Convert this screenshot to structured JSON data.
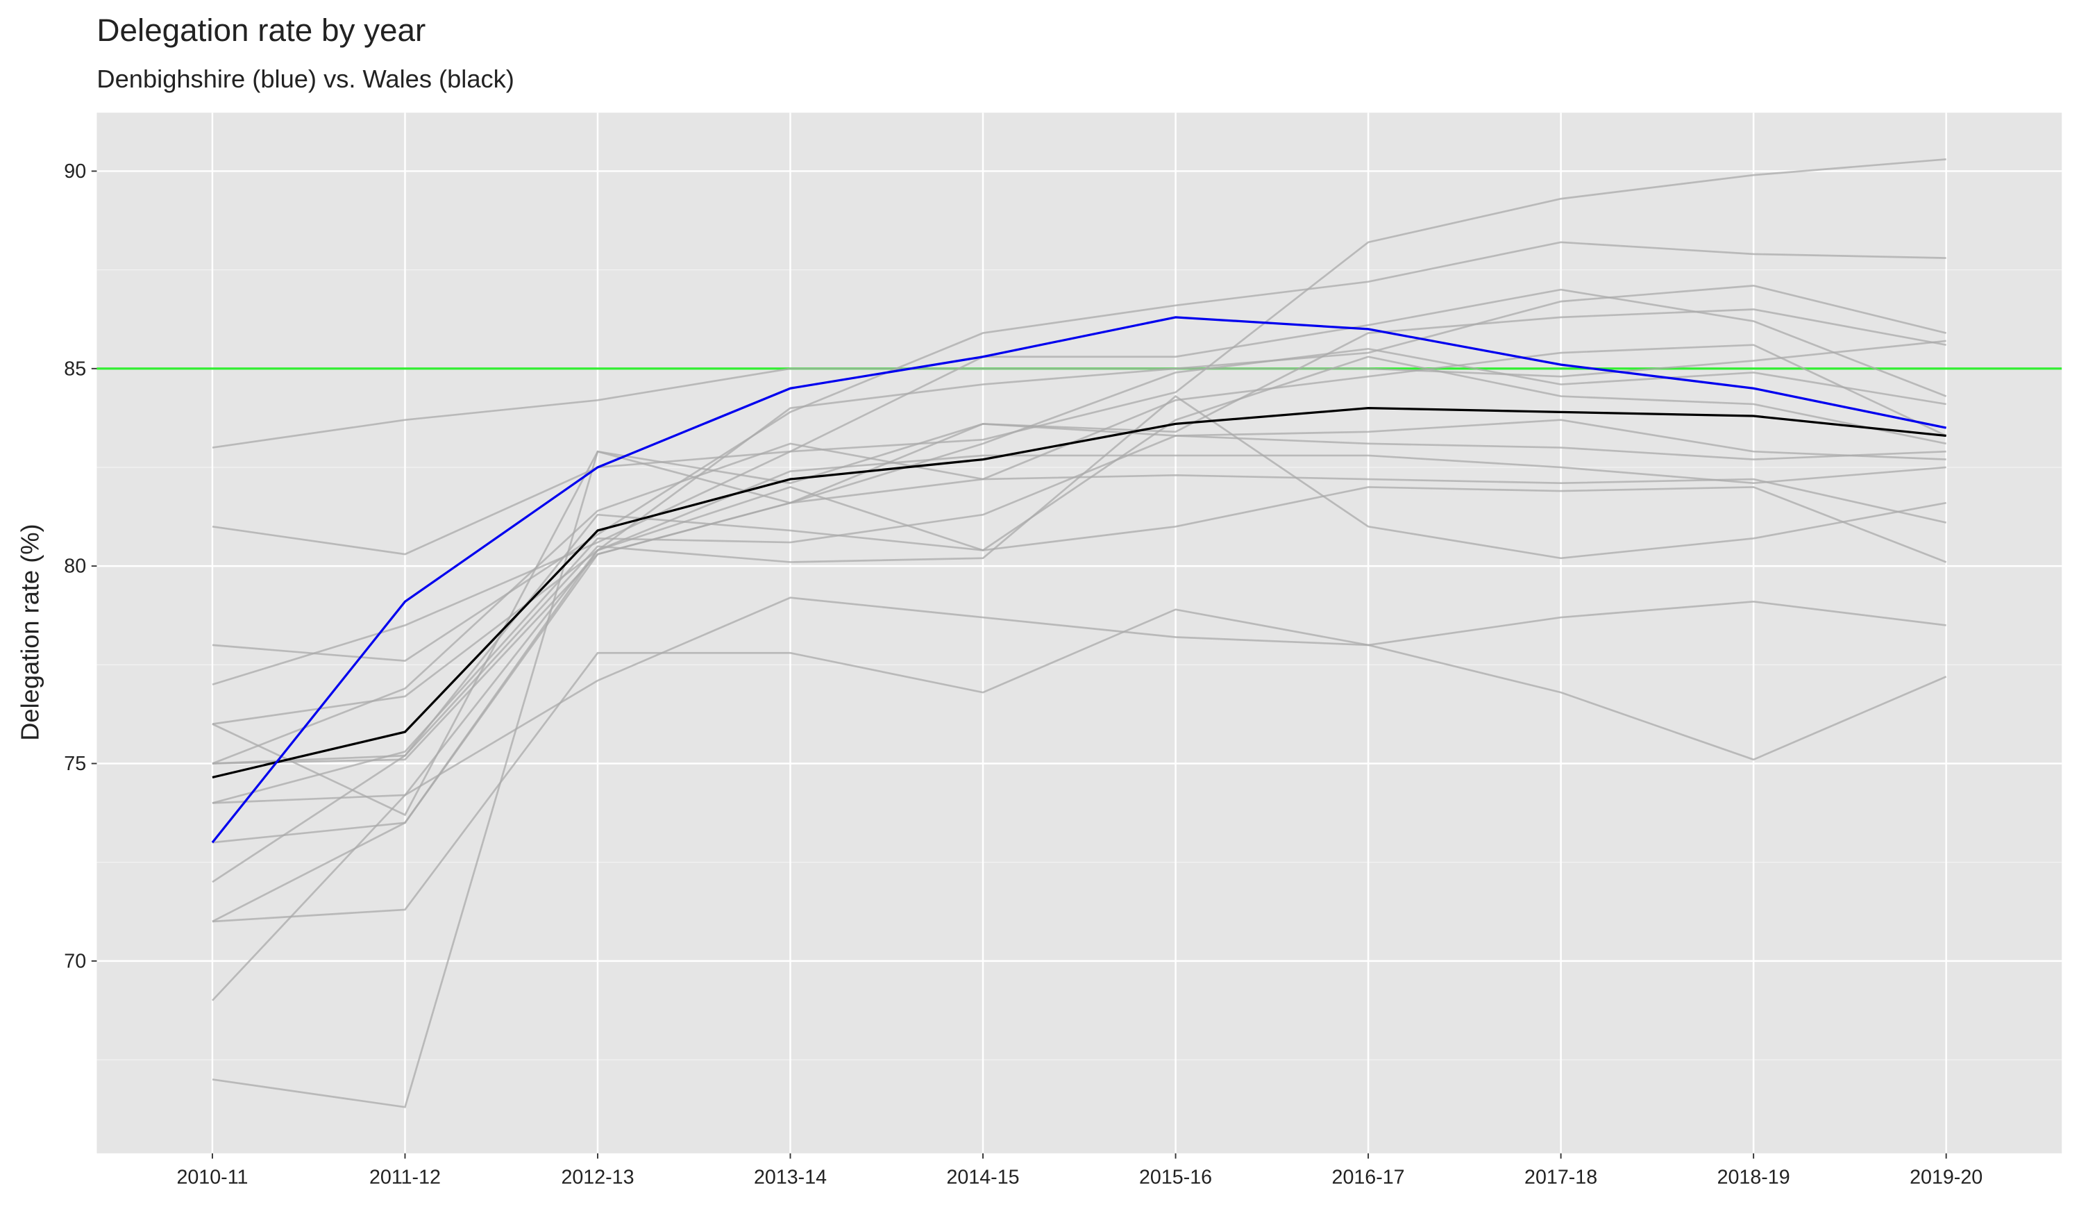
{
  "chart_data": {
    "type": "line",
    "title": "Delegation rate by year",
    "subtitle": "Denbighshire (blue) vs. Wales (black)",
    "y_label": "Delegation rate (%)",
    "categories": [
      "2010-11",
      "2011-12",
      "2012-13",
      "2013-14",
      "2014-15",
      "2015-16",
      "2016-17",
      "2017-18",
      "2018-19",
      "2019-20"
    ],
    "ylim": [
      65.13,
      91.48
    ],
    "yticks": [
      70,
      75,
      80,
      85,
      90
    ],
    "grid": true,
    "reference_line": {
      "value": 85,
      "color": "#33ee33"
    },
    "series": [
      {
        "color": "#a9a9a9",
        "values": [
          83.0,
          83.7,
          84.2,
          85.0,
          85.0,
          85.0,
          85.0,
          84.8,
          85.2,
          85.7
        ]
      },
      {
        "color": "#a9a9a9",
        "values": [
          81.0,
          80.3,
          82.5,
          82.9,
          83.2,
          84.4,
          88.2,
          89.3,
          89.9,
          90.3
        ]
      },
      {
        "color": "#a9a9a9",
        "values": [
          78.0,
          77.6,
          80.8,
          83.9,
          85.9,
          86.6,
          87.2,
          88.2,
          87.9,
          87.8
        ]
      },
      {
        "color": "#a9a9a9",
        "values": [
          77.0,
          78.5,
          80.6,
          82.9,
          85.3,
          85.3,
          86.1,
          87.0,
          86.2,
          84.3
        ]
      },
      {
        "color": "#a9a9a9",
        "values": [
          76.0,
          76.7,
          80.4,
          84.0,
          84.6,
          85.0,
          85.4,
          86.7,
          87.1,
          85.9
        ]
      },
      {
        "color": "#a9a9a9",
        "values": [
          76.0,
          73.7,
          82.9,
          82.1,
          83.6,
          83.4,
          85.9,
          86.3,
          86.5,
          85.6
        ]
      },
      {
        "color": "#a9a9a9",
        "values": [
          75.0,
          75.1,
          80.3,
          81.6,
          83.1,
          84.9,
          85.5,
          84.6,
          84.9,
          84.1
        ]
      },
      {
        "color": "#a9a9a9",
        "values": [
          75.0,
          76.9,
          81.4,
          83.1,
          82.2,
          84.2,
          84.8,
          85.4,
          85.6,
          83.3
        ]
      },
      {
        "color": "#a9a9a9",
        "values": [
          74.0,
          74.2,
          80.4,
          82.0,
          80.4,
          83.7,
          85.3,
          84.3,
          84.1,
          83.1
        ]
      },
      {
        "color": "#a9a9a9",
        "values": [
          74.0,
          75.3,
          80.7,
          80.6,
          81.3,
          83.3,
          83.1,
          83.0,
          82.7,
          82.9
        ]
      },
      {
        "color": "#a9a9a9",
        "values": [
          73.0,
          73.5,
          80.3,
          81.6,
          83.6,
          83.3,
          83.4,
          83.7,
          82.9,
          82.7
        ]
      },
      {
        "color": "#a9a9a9",
        "values": [
          72.0,
          75.2,
          80.5,
          80.1,
          80.2,
          84.3,
          81.0,
          80.2,
          80.7,
          81.6
        ]
      },
      {
        "color": "#a9a9a9",
        "values": [
          71.0,
          73.5,
          80.4,
          82.4,
          82.8,
          82.8,
          82.8,
          82.5,
          82.1,
          82.5
        ]
      },
      {
        "color": "#a9a9a9",
        "values": [
          71.0,
          71.3,
          77.8,
          77.8,
          76.8,
          78.9,
          78.0,
          78.7,
          79.1,
          78.5
        ]
      },
      {
        "color": "#a9a9a9",
        "values": [
          69.0,
          74.2,
          77.1,
          79.2,
          78.7,
          78.2,
          78.0,
          76.8,
          75.1,
          77.2
        ]
      },
      {
        "color": "#a9a9a9",
        "values": [
          67.0,
          66.3,
          82.9,
          81.6,
          82.2,
          82.3,
          82.2,
          82.1,
          82.2,
          81.1
        ]
      },
      {
        "color": "#a9a9a9",
        "values": [
          75.0,
          75.2,
          81.3,
          80.9,
          80.4,
          81.0,
          82.0,
          81.9,
          82.0,
          80.1
        ]
      },
      {
        "color": "#000000",
        "values": [
          74.65,
          75.8,
          80.9,
          82.2,
          82.7,
          83.6,
          84.0,
          83.9,
          83.8,
          83.3
        ]
      },
      {
        "color": "#0000ee",
        "values": [
          73.0,
          79.1,
          82.5,
          84.5,
          85.3,
          86.3,
          86.0,
          85.1,
          84.5,
          83.5
        ]
      }
    ]
  }
}
